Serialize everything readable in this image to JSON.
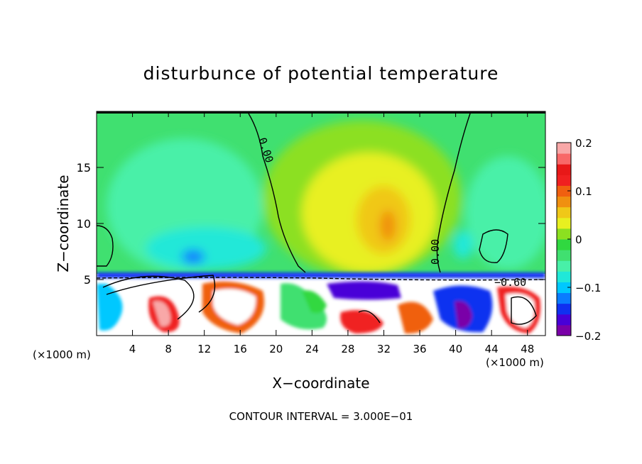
{
  "chart_data": {
    "type": "heatmap",
    "title": "disturbunce of potential temperature",
    "xlabel": "X−coordinate",
    "ylabel": "Z−coordinate",
    "x_unit_left": "(×1000 m)",
    "x_unit_right": "(×1000 m)",
    "xlim": [
      0,
      50
    ],
    "ylim": [
      0,
      20
    ],
    "x_ticks": [
      "4",
      "8",
      "12",
      "16",
      "20",
      "24",
      "28",
      "32",
      "36",
      "40",
      "44",
      "48"
    ],
    "y_ticks": [
      "5",
      "10",
      "15"
    ],
    "colorbar": {
      "min": -0.2,
      "max": 0.2,
      "tick_labels": [
        "0.2",
        "0.1",
        "0",
        "−0.1",
        "−0.2"
      ],
      "colors": [
        "#7a00a8",
        "#4800d8",
        "#1030f0",
        "#0a7cff",
        "#00c8ff",
        "#20e8d8",
        "#48f0a8",
        "#40e070",
        "#30d840",
        "#8ce020",
        "#e8f020",
        "#f0c818",
        "#f09010",
        "#f06010",
        "#f02020",
        "#e81818",
        "#f86868",
        "#f8a8a8"
      ]
    },
    "contour_labels": [
      "0.00",
      "0.00",
      "−0.60"
    ],
    "footer": "CONTOUR INTERVAL = 3.000E−01"
  }
}
